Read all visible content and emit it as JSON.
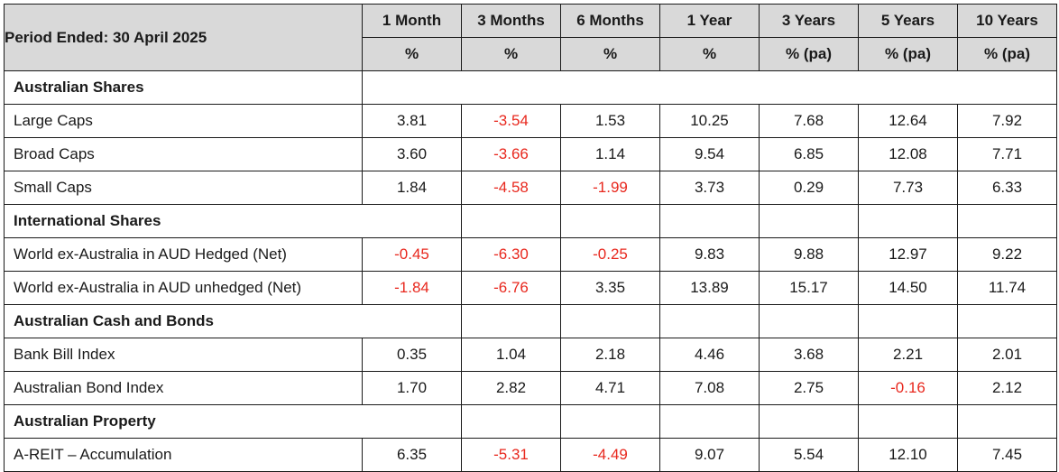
{
  "header": {
    "period_label": "Period Ended: 30 April 2025",
    "columns": [
      {
        "name": "1 Month",
        "unit": "%"
      },
      {
        "name": "3 Months",
        "unit": "%"
      },
      {
        "name": "6 Months",
        "unit": "%"
      },
      {
        "name": "1 Year",
        "unit": "%"
      },
      {
        "name": "3 Years",
        "unit": "% (pa)"
      },
      {
        "name": "5 Years",
        "unit": "% (pa)"
      },
      {
        "name": "10 Years",
        "unit": "% (pa)"
      }
    ]
  },
  "colors": {
    "negative": "#e8281e",
    "header_bg": "#d9d9d9"
  },
  "sections": [
    {
      "title": "Australian Shares",
      "rows": [
        {
          "label": "Large Caps",
          "values": [
            "3.81",
            "-3.54",
            "1.53",
            "10.25",
            "7.68",
            "12.64",
            "7.92"
          ]
        },
        {
          "label": "Broad Caps",
          "values": [
            "3.60",
            "-3.66",
            "1.14",
            "9.54",
            "6.85",
            "12.08",
            "7.71"
          ]
        },
        {
          "label": "Small Caps",
          "values": [
            "1.84",
            "-4.58",
            "-1.99",
            "3.73",
            "0.29",
            "7.73",
            "6.33"
          ]
        }
      ]
    },
    {
      "title": "International Shares",
      "rows": [
        {
          "label": "World ex-Australia in AUD Hedged (Net)",
          "values": [
            "-0.45",
            "-6.30",
            "-0.25",
            "9.83",
            "9.88",
            "12.97",
            "9.22"
          ]
        },
        {
          "label": "World ex-Australia in AUD unhedged (Net)",
          "values": [
            "-1.84",
            "-6.76",
            "3.35",
            "13.89",
            "15.17",
            "14.50",
            "11.74"
          ]
        }
      ]
    },
    {
      "title": "Australian Cash and Bonds",
      "rows": [
        {
          "label": "Bank Bill Index",
          "values": [
            "0.35",
            "1.04",
            "2.18",
            "4.46",
            "3.68",
            "2.21",
            "2.01"
          ]
        },
        {
          "label": "Australian Bond Index",
          "values": [
            "1.70",
            "2.82",
            "4.71",
            "7.08",
            "2.75",
            "-0.16",
            "2.12"
          ]
        }
      ]
    },
    {
      "title": "Australian Property",
      "rows": [
        {
          "label": "A-REIT – Accumulation",
          "values": [
            "6.35",
            "-5.31",
            "-4.49",
            "9.07",
            "5.54",
            "12.10",
            "7.45"
          ]
        }
      ]
    }
  ]
}
